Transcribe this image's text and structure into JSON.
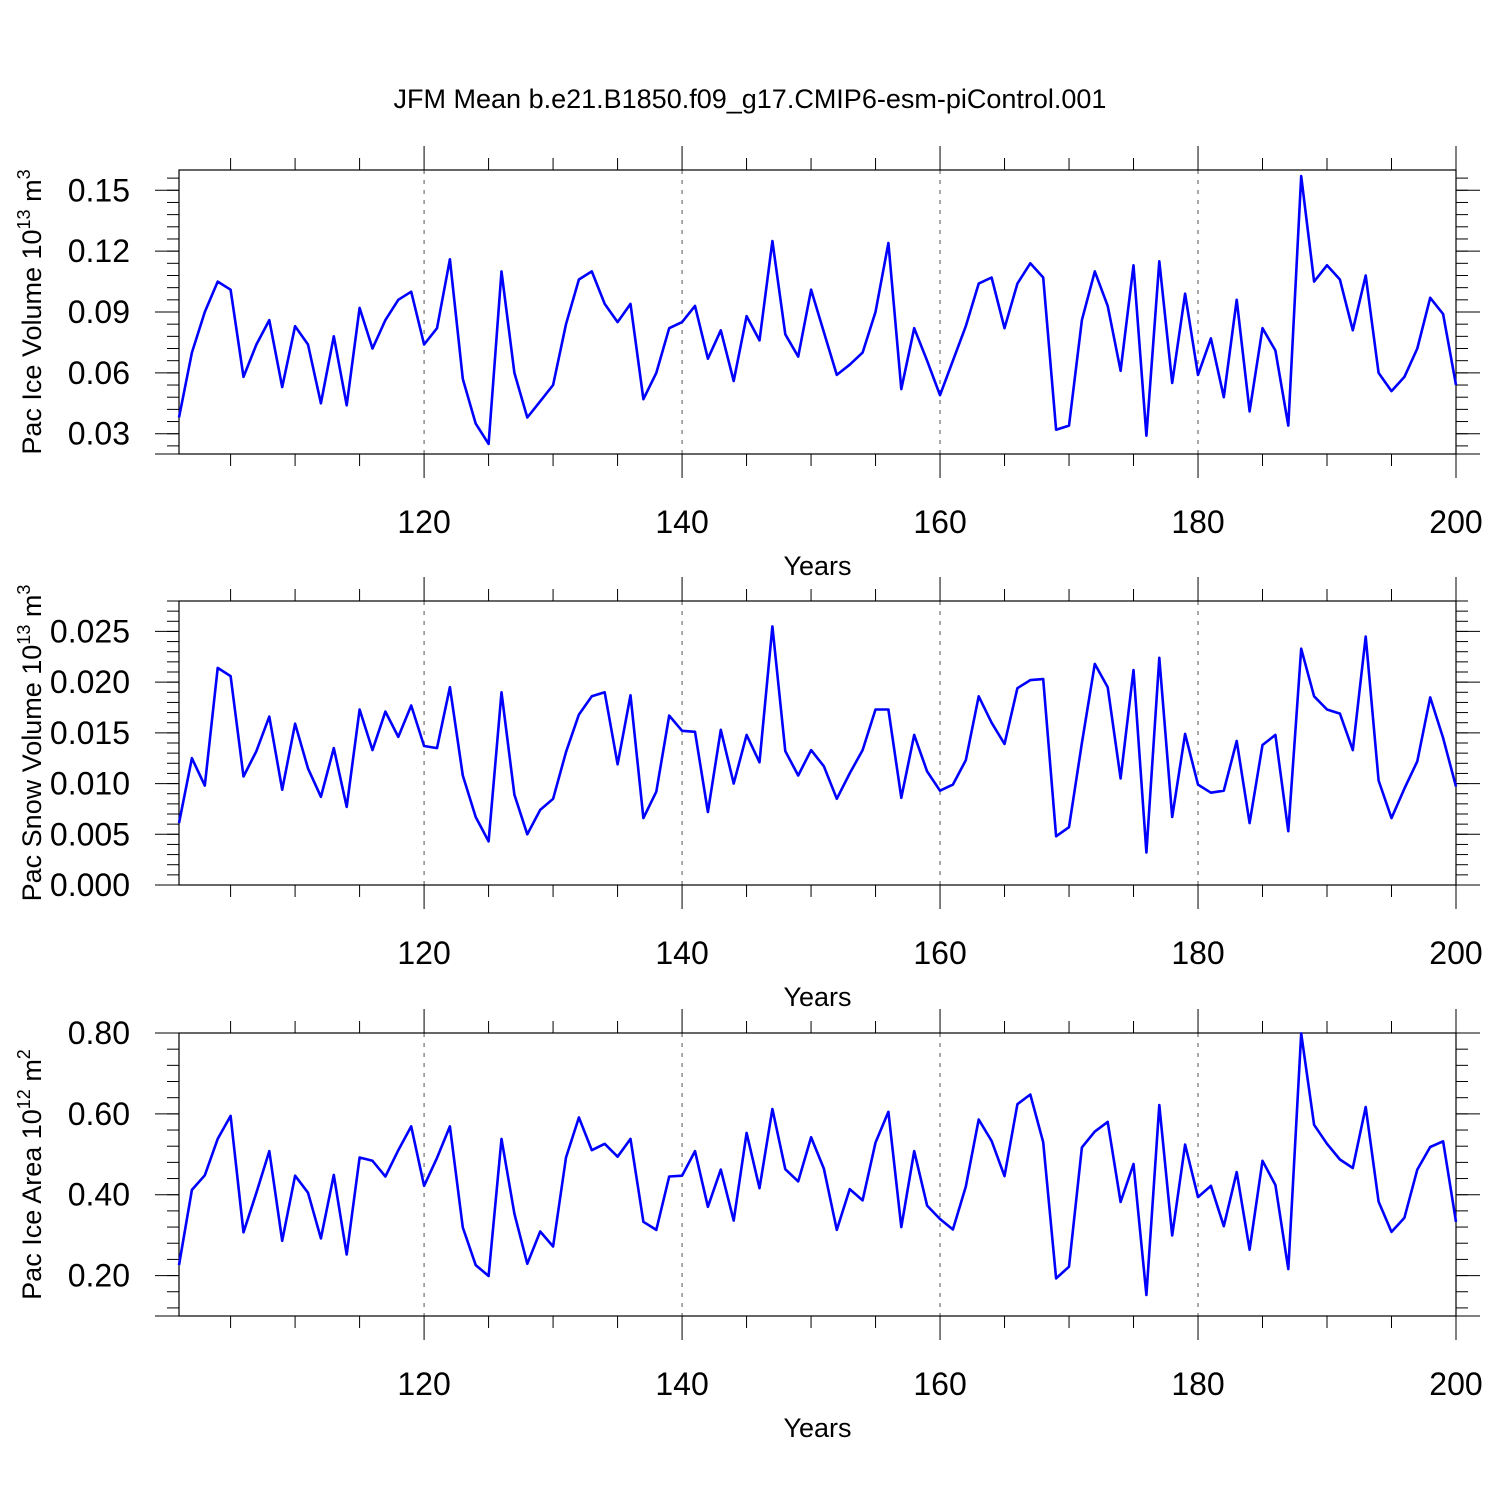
{
  "figure_title": "JFM Mean b.e21.B1850.f09_g17.CMIP6-esm-piControl.001",
  "chart_data": [
    {
      "type": "line",
      "title": "JFM Mean b.e21.B1850.f09_g17.CMIP6-esm-piControl.001",
      "ylabel_main": "Pac Ice Volume 10",
      "ylabel_exp1": "13",
      "ylabel_mid": " m",
      "ylabel_exp2": "3",
      "xlabel": "Years",
      "xlim": [
        101,
        200
      ],
      "ylim": [
        0.02,
        0.16
      ],
      "yticks": [
        0.03,
        0.06,
        0.09,
        0.12,
        0.15
      ],
      "ytick_labels": [
        "0.03",
        "0.06",
        "0.09",
        "0.12",
        "0.15"
      ],
      "xticks": [
        120,
        140,
        160,
        180,
        200
      ],
      "xtick_labels": [
        "120",
        "140",
        "160",
        "180",
        "200"
      ],
      "grid": "vertical dashed at major x ticks",
      "color": "#0000ff",
      "x_start": 101,
      "values": [
        0.038,
        0.07,
        0.09,
        0.105,
        0.101,
        0.058,
        0.074,
        0.086,
        0.053,
        0.083,
        0.074,
        0.045,
        0.078,
        0.044,
        0.092,
        0.072,
        0.086,
        0.096,
        0.1,
        0.074,
        0.082,
        0.116,
        0.057,
        0.035,
        0.025,
        0.11,
        0.06,
        0.038,
        0.046,
        0.054,
        0.084,
        0.106,
        0.11,
        0.094,
        0.085,
        0.094,
        0.047,
        0.06,
        0.082,
        0.085,
        0.093,
        0.067,
        0.081,
        0.056,
        0.088,
        0.076,
        0.125,
        0.079,
        0.068,
        0.101,
        0.08,
        0.059,
        0.064,
        0.07,
        0.09,
        0.124,
        0.052,
        0.082,
        0.066,
        0.049,
        0.066,
        0.083,
        0.104,
        0.107,
        0.082,
        0.104,
        0.114,
        0.107,
        0.032,
        0.034,
        0.086,
        0.11,
        0.093,
        0.061,
        0.113,
        0.029,
        0.115,
        0.055,
        0.099,
        0.059,
        0.077,
        0.048,
        0.096,
        0.041,
        0.082,
        0.071,
        0.034,
        0.157,
        0.105,
        0.113,
        0.106,
        0.081,
        0.108,
        0.06,
        0.051,
        0.058,
        0.072,
        0.097,
        0.089,
        0.054
      ]
    },
    {
      "type": "line",
      "ylabel_main": "Pac Snow Volume 10",
      "ylabel_exp1": "13",
      "ylabel_mid": " m",
      "ylabel_exp2": "3",
      "xlabel": "Years",
      "xlim": [
        101,
        200
      ],
      "ylim": [
        0.0,
        0.028
      ],
      "yticks": [
        0.0,
        0.005,
        0.01,
        0.015,
        0.02,
        0.025
      ],
      "ytick_labels": [
        "0.000",
        "0.005",
        "0.010",
        "0.015",
        "0.020",
        "0.025"
      ],
      "xticks": [
        120,
        140,
        160,
        180,
        200
      ],
      "xtick_labels": [
        "120",
        "140",
        "160",
        "180",
        "200"
      ],
      "grid": "vertical dashed at major x ticks",
      "color": "#0000ff",
      "x_start": 101,
      "values": [
        0.0061,
        0.0125,
        0.0098,
        0.0214,
        0.0206,
        0.0107,
        0.0132,
        0.0166,
        0.0094,
        0.0159,
        0.0115,
        0.0087,
        0.0135,
        0.0077,
        0.0173,
        0.0133,
        0.0171,
        0.0146,
        0.0177,
        0.0137,
        0.0135,
        0.0195,
        0.0108,
        0.0067,
        0.0043,
        0.019,
        0.0089,
        0.005,
        0.0074,
        0.0085,
        0.0131,
        0.0168,
        0.0186,
        0.019,
        0.0119,
        0.0187,
        0.0066,
        0.0092,
        0.0167,
        0.0152,
        0.0151,
        0.0072,
        0.0153,
        0.01,
        0.0148,
        0.0121,
        0.0255,
        0.0132,
        0.0108,
        0.0133,
        0.0117,
        0.0085,
        0.011,
        0.0133,
        0.0173,
        0.0173,
        0.0086,
        0.0148,
        0.0112,
        0.0093,
        0.0099,
        0.0123,
        0.0186,
        0.016,
        0.0139,
        0.0194,
        0.0202,
        0.0203,
        0.0048,
        0.0057,
        0.014,
        0.0218,
        0.0195,
        0.0105,
        0.0212,
        0.0032,
        0.0224,
        0.0067,
        0.0149,
        0.0099,
        0.0091,
        0.0093,
        0.0142,
        0.0061,
        0.0138,
        0.0148,
        0.0053,
        0.0233,
        0.0186,
        0.0173,
        0.0169,
        0.0133,
        0.0245,
        0.0103,
        0.0066,
        0.0095,
        0.0122,
        0.0185,
        0.0145,
        0.0097
      ]
    },
    {
      "type": "line",
      "ylabel_main": "Pac Ice Area 10",
      "ylabel_exp1": "12",
      "ylabel_mid": " m",
      "ylabel_exp2": "2",
      "xlabel": "Years",
      "xlim": [
        101,
        200
      ],
      "ylim": [
        0.1,
        0.8
      ],
      "yticks": [
        0.2,
        0.4,
        0.6,
        0.8
      ],
      "ytick_labels": [
        "0.20",
        "0.40",
        "0.60",
        "0.80"
      ],
      "xticks": [
        120,
        140,
        160,
        180,
        200
      ],
      "xtick_labels": [
        "120",
        "140",
        "160",
        "180",
        "200"
      ],
      "grid": "vertical dashed at major x ticks",
      "color": "#0000ff",
      "x_start": 101,
      "values": [
        0.226,
        0.412,
        0.448,
        0.538,
        0.595,
        0.307,
        0.405,
        0.508,
        0.286,
        0.447,
        0.405,
        0.292,
        0.449,
        0.252,
        0.492,
        0.484,
        0.445,
        0.51,
        0.569,
        0.422,
        0.491,
        0.569,
        0.319,
        0.226,
        0.199,
        0.538,
        0.353,
        0.229,
        0.309,
        0.272,
        0.492,
        0.591,
        0.51,
        0.526,
        0.494,
        0.538,
        0.333,
        0.313,
        0.445,
        0.447,
        0.508,
        0.37,
        0.462,
        0.336,
        0.553,
        0.416,
        0.612,
        0.463,
        0.433,
        0.542,
        0.464,
        0.313,
        0.414,
        0.386,
        0.529,
        0.605,
        0.32,
        0.508,
        0.373,
        0.34,
        0.314,
        0.42,
        0.586,
        0.533,
        0.446,
        0.624,
        0.648,
        0.53,
        0.193,
        0.222,
        0.517,
        0.556,
        0.58,
        0.382,
        0.476,
        0.152,
        0.622,
        0.299,
        0.524,
        0.394,
        0.422,
        0.322,
        0.456,
        0.264,
        0.484,
        0.424,
        0.216,
        0.799,
        0.573,
        0.526,
        0.487,
        0.466,
        0.617,
        0.383,
        0.308,
        0.343,
        0.462,
        0.518,
        0.532,
        0.333
      ]
    }
  ]
}
